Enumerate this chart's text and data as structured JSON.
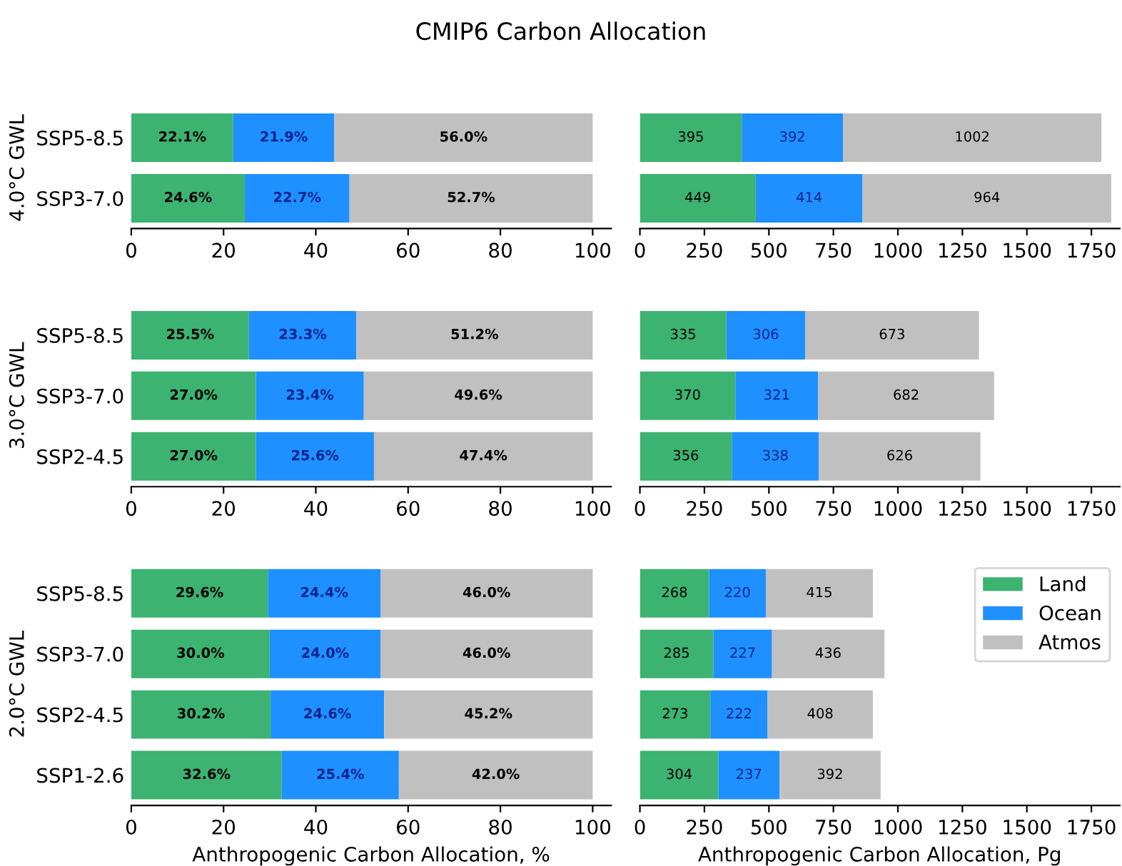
{
  "chart_data": [
    {
      "type": "bar",
      "orientation": "horizontal",
      "stacked": true,
      "title": "CMIP6 Carbon Allocation",
      "ylabel": "4.0°C GWL",
      "categories": [
        "SSP5-8.5",
        "SSP3-7.0"
      ],
      "xlim": [
        0,
        104
      ],
      "xticks": [
        0,
        20,
        40,
        60,
        80,
        100
      ],
      "series": [
        {
          "color": "#3cb371",
          "values": [
            22.1,
            24.6
          ],
          "value_labels": [
            "22.1%",
            "24.6%"
          ]
        },
        {
          "color": "#1e90ff",
          "values": [
            21.9,
            22.7
          ],
          "value_labels": [
            "21.9%",
            "22.7%"
          ]
        },
        {
          "color": "#c0c0c0",
          "values": [
            56.0,
            52.7
          ],
          "value_labels": [
            "56.0%",
            "52.7%"
          ]
        }
      ]
    },
    {
      "type": "bar",
      "orientation": "horizontal",
      "stacked": true,
      "data_labels": true,
      "categories": [
        null,
        null
      ],
      "xlim": [
        0,
        1860
      ],
      "xticks": [
        0,
        250,
        500,
        750,
        1000,
        1250,
        1500,
        1750
      ],
      "series": [
        {
          "color": "#3cb371",
          "values": [
            395,
            449
          ]
        },
        {
          "color": "#1e90ff",
          "values": [
            392,
            414
          ]
        },
        {
          "color": "#c0c0c0",
          "values": [
            1002,
            964
          ]
        }
      ]
    },
    {
      "type": "bar",
      "orientation": "horizontal",
      "stacked": true,
      "ylabel": "3.0°C GWL",
      "categories": [
        "SSP5-8.5",
        "SSP3-7.0",
        "SSP2-4.5"
      ],
      "xlim": [
        0,
        104
      ],
      "xticks": [
        0,
        20,
        40,
        60,
        80,
        100
      ],
      "series": [
        {
          "color": "#3cb371",
          "values": [
            25.5,
            27.0,
            27.0
          ],
          "value_labels": [
            "25.5%",
            "27.0%",
            "27.0%"
          ]
        },
        {
          "color": "#1e90ff",
          "values": [
            23.3,
            23.4,
            25.6
          ],
          "value_labels": [
            "23.3%",
            "23.4%",
            "25.6%"
          ]
        },
        {
          "color": "#c0c0c0",
          "values": [
            51.2,
            49.6,
            47.4
          ],
          "value_labels": [
            "51.2%",
            "49.6%",
            "47.4%"
          ]
        }
      ]
    },
    {
      "type": "bar",
      "orientation": "horizontal",
      "stacked": true,
      "data_labels": true,
      "categories": [
        null,
        null,
        null
      ],
      "xlim": [
        0,
        1860
      ],
      "xticks": [
        0,
        250,
        500,
        750,
        1000,
        1250,
        1500,
        1750
      ],
      "series": [
        {
          "color": "#3cb371",
          "values": [
            335,
            370,
            356
          ]
        },
        {
          "color": "#1e90ff",
          "values": [
            306,
            321,
            338
          ]
        },
        {
          "color": "#c0c0c0",
          "values": [
            673,
            682,
            626
          ]
        }
      ]
    },
    {
      "type": "bar",
      "orientation": "horizontal",
      "stacked": true,
      "ylabel": "2.0°C GWL",
      "xlabel": "Anthropogenic Carbon Allocation, %",
      "categories": [
        "SSP5-8.5",
        "SSP3-7.0",
        "SSP2-4.5",
        "SSP1-2.6"
      ],
      "xlim": [
        0,
        104
      ],
      "xticks": [
        0,
        20,
        40,
        60,
        80,
        100
      ],
      "series": [
        {
          "color": "#3cb371",
          "values": [
            29.6,
            30.0,
            30.2,
            32.6
          ],
          "value_labels": [
            "29.6%",
            "30.0%",
            "30.2%",
            "32.6%"
          ]
        },
        {
          "color": "#1e90ff",
          "values": [
            24.4,
            24.0,
            24.6,
            25.4
          ],
          "value_labels": [
            "24.4%",
            "24.0%",
            "24.6%",
            "25.4%"
          ]
        },
        {
          "color": "#c0c0c0",
          "values": [
            46.0,
            46.0,
            45.2,
            42.0
          ],
          "value_labels": [
            "46.0%",
            "46.0%",
            "45.2%",
            "42.0%"
          ]
        }
      ]
    },
    {
      "type": "bar",
      "orientation": "horizontal",
      "stacked": true,
      "data_labels": true,
      "xlabel": "Anthropogenic Carbon Allocation, Pg",
      "categories": [
        null,
        null,
        null,
        null
      ],
      "xlim": [
        0,
        1860
      ],
      "xticks": [
        0,
        250,
        500,
        750,
        1000,
        1250,
        1500,
        1750
      ],
      "legend": "top right",
      "series": [
        {
          "name": "Land",
          "color": "#3cb371",
          "values": [
            268,
            285,
            273,
            304
          ]
        },
        {
          "name": "Ocean",
          "color": "#1e90ff",
          "values": [
            220,
            227,
            222,
            237
          ]
        },
        {
          "name": "Atmos",
          "color": "#c0c0c0",
          "values": [
            415,
            436,
            408,
            392
          ]
        }
      ]
    }
  ]
}
